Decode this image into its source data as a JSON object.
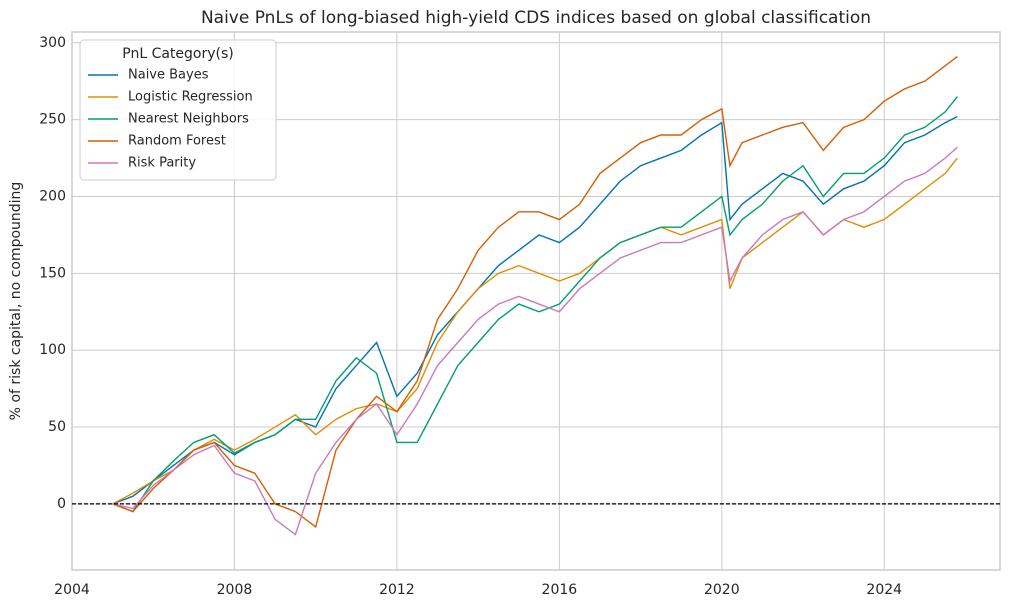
{
  "chart_data": {
    "type": "line",
    "title": "Naive PnLs of long-biased high-yield CDS indices based on global classification",
    "y_label": "% of risk capital, no compounding",
    "legend_title": "PnL Category(s)",
    "legend_position": "upper left",
    "grid": true,
    "hline": 0,
    "xlim": [
      2004,
      2026.85
    ],
    "xticks": [
      2004,
      2008,
      2012,
      2016,
      2020,
      2024
    ],
    "ylim": [
      -43,
      307
    ],
    "yticks": [
      0,
      50,
      100,
      150,
      200,
      250,
      300
    ],
    "x": [
      2005.0,
      2005.5,
      2006.0,
      2006.5,
      2007.0,
      2007.5,
      2008.0,
      2008.5,
      2009.0,
      2009.5,
      2010.0,
      2010.5,
      2011.0,
      2011.5,
      2012.0,
      2012.5,
      2013.0,
      2013.5,
      2014.0,
      2014.5,
      2015.0,
      2015.5,
      2016.0,
      2016.5,
      2017.0,
      2017.5,
      2018.0,
      2018.5,
      2019.0,
      2019.5,
      2020.0,
      2020.2,
      2020.5,
      2021.0,
      2021.5,
      2022.0,
      2022.5,
      2023.0,
      2023.5,
      2024.0,
      2024.5,
      2025.0,
      2025.5,
      2025.8
    ],
    "series": [
      {
        "name": "Naive Bayes",
        "color": "#0173b2",
        "values": [
          0,
          5,
          15,
          25,
          35,
          40,
          32,
          40,
          45,
          55,
          50,
          75,
          90,
          105,
          70,
          85,
          110,
          125,
          140,
          155,
          165,
          175,
          170,
          180,
          195,
          210,
          220,
          225,
          230,
          240,
          248,
          185,
          195,
          205,
          215,
          210,
          195,
          205,
          210,
          220,
          235,
          240,
          248,
          252
        ]
      },
      {
        "name": "Logistic Regression",
        "color": "#de8f05",
        "values": [
          0,
          7,
          15,
          22,
          35,
          42,
          35,
          42,
          50,
          58,
          45,
          55,
          62,
          65,
          60,
          75,
          105,
          125,
          140,
          150,
          155,
          150,
          145,
          150,
          160,
          170,
          175,
          180,
          175,
          180,
          185,
          140,
          160,
          170,
          180,
          190,
          175,
          185,
          180,
          185,
          195,
          205,
          215,
          225
        ]
      },
      {
        "name": "Nearest Neighbors",
        "color": "#029e73",
        "values": [
          0,
          -5,
          15,
          28,
          40,
          45,
          33,
          40,
          45,
          55,
          55,
          80,
          95,
          85,
          40,
          40,
          65,
          90,
          105,
          120,
          130,
          125,
          130,
          145,
          160,
          170,
          175,
          180,
          180,
          190,
          200,
          175,
          185,
          195,
          210,
          220,
          200,
          215,
          215,
          225,
          240,
          245,
          255,
          265
        ]
      },
      {
        "name": "Random Forest",
        "color": "#d55e00",
        "values": [
          0,
          -5,
          10,
          22,
          35,
          40,
          25,
          20,
          0,
          -5,
          -15,
          35,
          55,
          70,
          60,
          80,
          120,
          140,
          165,
          180,
          190,
          190,
          185,
          195,
          215,
          225,
          235,
          240,
          240,
          250,
          257,
          220,
          235,
          240,
          245,
          248,
          230,
          245,
          250,
          262,
          270,
          275,
          285,
          291
        ]
      },
      {
        "name": "Risk Parity",
        "color": "#cc78bc",
        "values": [
          0,
          -3,
          12,
          22,
          32,
          38,
          20,
          15,
          -10,
          -20,
          20,
          40,
          55,
          65,
          45,
          65,
          90,
          105,
          120,
          130,
          135,
          130,
          125,
          140,
          150,
          160,
          165,
          170,
          170,
          175,
          180,
          145,
          160,
          175,
          185,
          190,
          175,
          185,
          190,
          200,
          210,
          215,
          225,
          232
        ]
      }
    ]
  }
}
